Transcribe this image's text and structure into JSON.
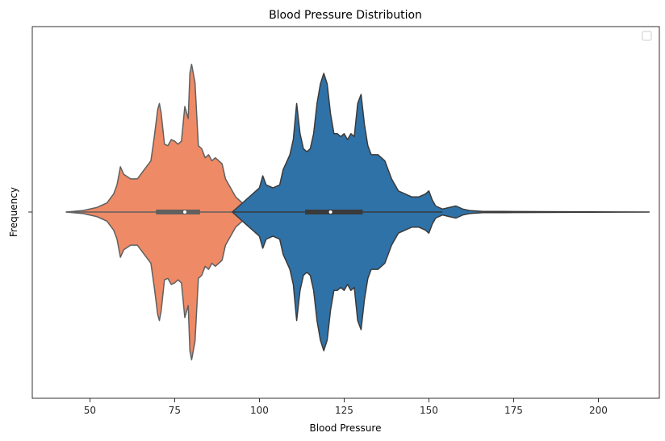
{
  "chart_data": {
    "type": "violin",
    "title": "Blood Pressure Distribution",
    "xlabel": "Blood Pressure",
    "ylabel": "Frequency",
    "xlim": [
      33,
      218
    ],
    "xticks": [
      50,
      75,
      100,
      125,
      150,
      175,
      200
    ],
    "grid": false,
    "legend": {
      "placement": "top-right",
      "entries": []
    },
    "series": [
      {
        "color": "#ee8a65",
        "edge_color": "#606060",
        "quartiles": [
          69.5,
          78,
          82.5
        ],
        "whiskers": [
          43,
          102
        ],
        "density": [
          [
            43,
            0.0
          ],
          [
            48,
            0.01
          ],
          [
            52,
            0.03
          ],
          [
            55,
            0.06
          ],
          [
            57,
            0.12
          ],
          [
            58,
            0.18
          ],
          [
            59,
            0.3
          ],
          [
            60,
            0.25
          ],
          [
            62,
            0.22
          ],
          [
            64,
            0.22
          ],
          [
            66,
            0.28
          ],
          [
            68,
            0.34
          ],
          [
            69,
            0.5
          ],
          [
            70,
            0.68
          ],
          [
            70.5,
            0.72
          ],
          [
            71,
            0.66
          ],
          [
            72,
            0.45
          ],
          [
            73,
            0.44
          ],
          [
            74,
            0.48
          ],
          [
            75,
            0.47
          ],
          [
            76,
            0.45
          ],
          [
            77,
            0.47
          ],
          [
            78,
            0.7
          ],
          [
            79,
            0.62
          ],
          [
            79.5,
            0.92
          ],
          [
            80,
            0.98
          ],
          [
            81,
            0.86
          ],
          [
            82,
            0.44
          ],
          [
            83,
            0.42
          ],
          [
            84,
            0.36
          ],
          [
            85,
            0.38
          ],
          [
            86,
            0.34
          ],
          [
            87,
            0.36
          ],
          [
            88,
            0.34
          ],
          [
            89,
            0.32
          ],
          [
            90,
            0.22
          ],
          [
            91,
            0.18
          ],
          [
            93,
            0.1
          ],
          [
            95,
            0.06
          ],
          [
            97,
            0.06
          ],
          [
            98,
            0.08
          ],
          [
            99,
            0.04
          ],
          [
            101,
            0.03
          ],
          [
            102,
            0.0
          ]
        ]
      },
      {
        "color": "#2f72a8",
        "edge_color": "#3a3a3a",
        "quartiles": [
          113.5,
          121,
          130.5
        ],
        "whiskers": [
          92,
          154
        ],
        "density": [
          [
            92,
            0.0
          ],
          [
            94,
            0.04
          ],
          [
            96,
            0.08
          ],
          [
            98,
            0.12
          ],
          [
            100,
            0.16
          ],
          [
            101,
            0.24
          ],
          [
            102,
            0.18
          ],
          [
            104,
            0.16
          ],
          [
            106,
            0.18
          ],
          [
            107,
            0.28
          ],
          [
            109,
            0.38
          ],
          [
            110,
            0.48
          ],
          [
            111,
            0.72
          ],
          [
            112,
            0.52
          ],
          [
            113,
            0.42
          ],
          [
            114,
            0.4
          ],
          [
            115,
            0.42
          ],
          [
            116,
            0.52
          ],
          [
            117,
            0.72
          ],
          [
            118,
            0.85
          ],
          [
            119,
            0.92
          ],
          [
            120,
            0.85
          ],
          [
            121,
            0.65
          ],
          [
            122,
            0.52
          ],
          [
            123,
            0.52
          ],
          [
            124,
            0.5
          ],
          [
            125,
            0.52
          ],
          [
            126,
            0.48
          ],
          [
            127,
            0.52
          ],
          [
            128,
            0.5
          ],
          [
            129,
            0.72
          ],
          [
            130,
            0.78
          ],
          [
            131,
            0.58
          ],
          [
            132,
            0.44
          ],
          [
            133,
            0.38
          ],
          [
            134,
            0.38
          ],
          [
            135,
            0.38
          ],
          [
            136,
            0.36
          ],
          [
            137,
            0.34
          ],
          [
            138,
            0.28
          ],
          [
            139,
            0.22
          ],
          [
            141,
            0.14
          ],
          [
            143,
            0.12
          ],
          [
            145,
            0.1
          ],
          [
            147,
            0.1
          ],
          [
            149,
            0.12
          ],
          [
            150,
            0.14
          ],
          [
            151,
            0.08
          ],
          [
            152,
            0.04
          ],
          [
            154,
            0.02
          ],
          [
            156,
            0.03
          ],
          [
            158,
            0.04
          ],
          [
            160,
            0.02
          ],
          [
            162,
            0.01
          ],
          [
            166,
            0.004
          ],
          [
            172,
            0.004
          ],
          [
            190,
            0.002
          ],
          [
            215,
            0.0
          ]
        ]
      }
    ]
  }
}
